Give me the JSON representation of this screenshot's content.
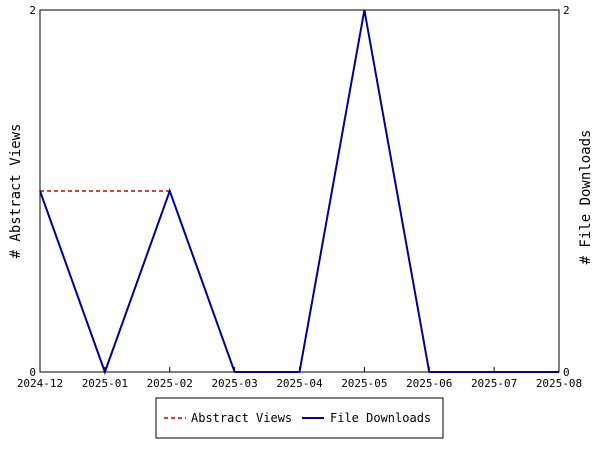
{
  "chart_data": {
    "type": "line",
    "x": [
      "2024-12",
      "2025-01",
      "2025-02",
      "2025-03",
      "2025-04",
      "2025-05",
      "2025-06",
      "2025-07",
      "2025-08"
    ],
    "series": [
      {
        "name": "Abstract Views",
        "axis": "left",
        "color": "#cc0000",
        "style": "dashed",
        "values": [
          1,
          1,
          1,
          null,
          null,
          null,
          null,
          null,
          null
        ]
      },
      {
        "name": "File Downloads",
        "axis": "right",
        "color": "#000099",
        "style": "solid",
        "values": [
          1,
          0,
          1,
          0,
          0,
          2,
          0,
          0,
          0
        ]
      }
    ],
    "ylabel_left": "# Abstract Views",
    "ylabel_right": "# File Downloads",
    "ylim": [
      0,
      2
    ],
    "yticks": [
      0,
      2
    ],
    "grid": false,
    "legend_position": "bottom-center"
  }
}
